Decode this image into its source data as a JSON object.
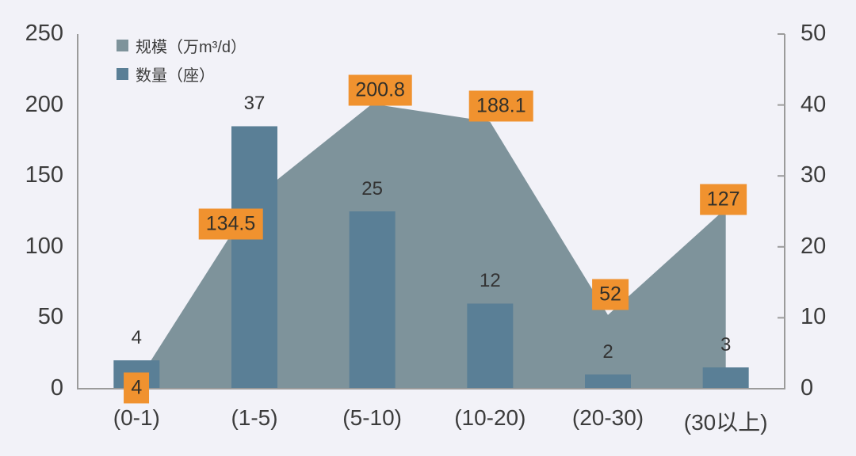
{
  "canvas": {
    "background": "#F2F2F8"
  },
  "legend": {
    "items": [
      {
        "label": "规模（万m³/d）",
        "swatch": "area-swatch"
      },
      {
        "label": "数量（座）",
        "swatch": "bar-swatch"
      }
    ]
  },
  "chart_data": {
    "type": "combo-area-bar",
    "categories": [
      "(0-1)",
      "(1-5)",
      "(5-10)",
      "(10-20)",
      "(20-30)",
      "(30以上)"
    ],
    "series": [
      {
        "name": "规模（万m³/d）",
        "type": "area",
        "axis": "left",
        "color": "#7E939B",
        "values": [
          4,
          134.5,
          200.8,
          188.1,
          52,
          127
        ],
        "labels": [
          "4",
          "134.5",
          "200.8",
          "188.1",
          "52",
          "127"
        ],
        "label_style": "orange-box",
        "label_bg": "#F0922F",
        "label_text_color": "#32302A"
      },
      {
        "name": "数量（座）",
        "type": "bar",
        "axis": "right",
        "color": "#5A7F96",
        "values": [
          4,
          37,
          25,
          12,
          2,
          3
        ],
        "labels": [
          "4",
          "37",
          "25",
          "12",
          "2",
          "3"
        ],
        "label_style": "plain",
        "label_text_color": "#333333"
      }
    ],
    "left_axis": {
      "min": 0,
      "max": 250,
      "tick_step": 50,
      "tick_labels": [
        "0",
        "50",
        "100",
        "150",
        "200",
        "250"
      ]
    },
    "right_axis": {
      "min": 0,
      "max": 50,
      "tick_step": 10,
      "tick_labels": [
        "0",
        "10",
        "20",
        "30",
        "40",
        "50"
      ]
    },
    "grid": false,
    "legend_position": "top-left",
    "axis_color": "#9B9B9B",
    "text_color": "#3C3C3C"
  }
}
